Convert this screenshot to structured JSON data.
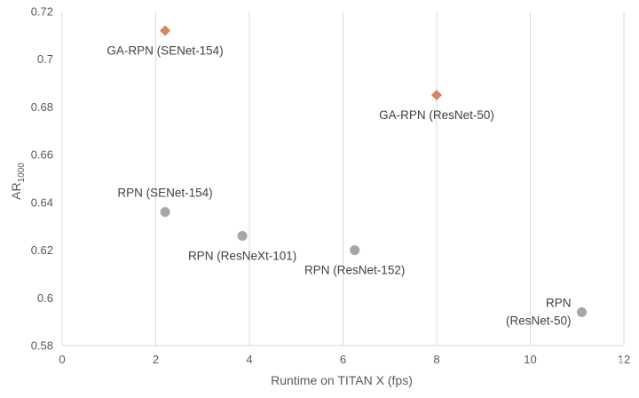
{
  "chart_data": {
    "type": "scatter",
    "xlabel": "Runtime on TITAN X (fps)",
    "ylabel": "AR",
    "ylabel_subscript": "1000",
    "xlim": [
      0,
      12
    ],
    "ylim": [
      0.58,
      0.72
    ],
    "x_ticks": [
      0,
      2,
      4,
      6,
      8,
      10,
      12
    ],
    "y_ticks": [
      0.58,
      0.6,
      0.62,
      0.64,
      0.66,
      0.68,
      0.7,
      0.72
    ],
    "y_tick_labels": [
      "0.58",
      "0.6",
      "0.62",
      "0.64",
      "0.66",
      "0.68",
      "0.7",
      "0.72"
    ],
    "grid": "vertical",
    "series": [
      {
        "marker": "diamond",
        "color": "#d9845f",
        "points": [
          {
            "label": "GA-RPN (SENet-154)",
            "x": 2.2,
            "y": 0.712,
            "label_pos": "below"
          },
          {
            "label": "GA-RPN (ResNet-50)",
            "x": 8.0,
            "y": 0.685,
            "label_pos": "below"
          }
        ]
      },
      {
        "marker": "circle",
        "color": "#a6a6a6",
        "points": [
          {
            "label": "RPN (SENet-154)",
            "x": 2.2,
            "y": 0.636,
            "label_pos": "above"
          },
          {
            "label": "RPN (ResNeXt-101)",
            "x": 3.85,
            "y": 0.626,
            "label_pos": "below"
          },
          {
            "label": "RPN (ResNet-152)",
            "x": 6.25,
            "y": 0.62,
            "label_pos": "below"
          },
          {
            "label_lines": [
              "RPN",
              "(ResNet-50)"
            ],
            "x": 11.1,
            "y": 0.594,
            "label_pos": "left"
          }
        ]
      }
    ]
  },
  "watermark": "知乎 @怜星"
}
